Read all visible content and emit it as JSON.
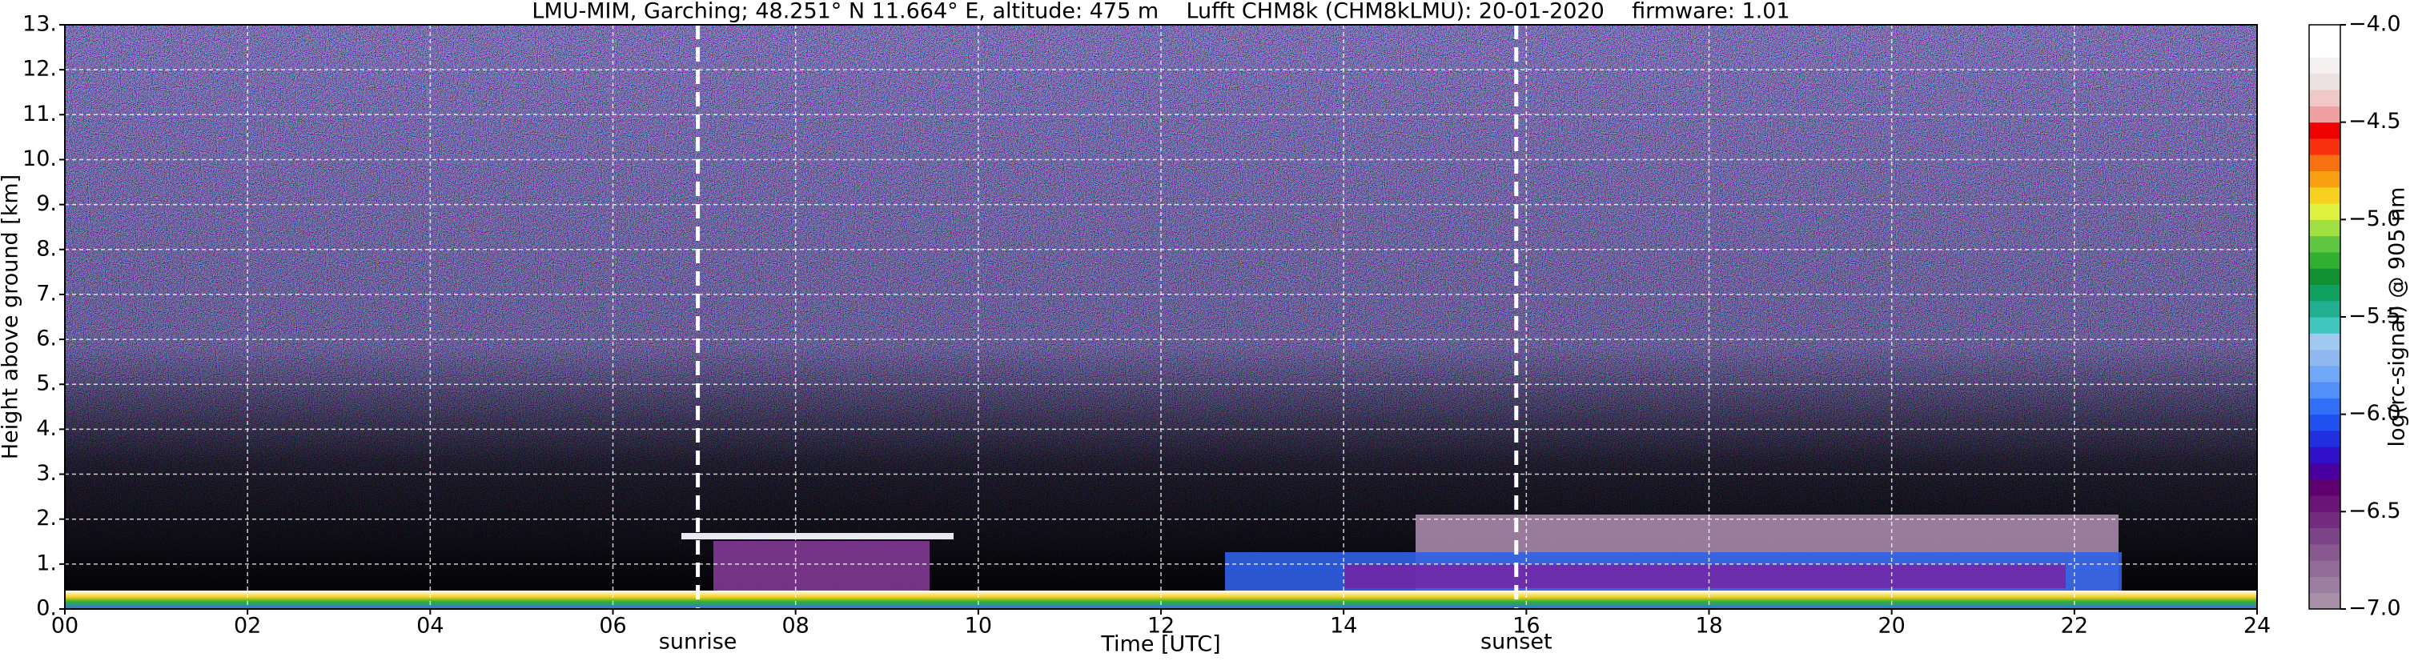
{
  "chart_data": {
    "type": "heatmap",
    "title": "LMU-MIM, Garching; 48.251° N 11.664° E, altitude: 475 m    Lufft CHM8k (CHM8kLMU): 20-01-2020    firmware: 1.01",
    "xlabel": "Time [UTC]",
    "ylabel": "Height above ground [km]",
    "xlim": [
      0,
      24
    ],
    "xticks": [
      {
        "value": 0,
        "label": "00"
      },
      {
        "value": 2,
        "label": "02"
      },
      {
        "value": 4,
        "label": "04"
      },
      {
        "value": 6,
        "label": "06"
      },
      {
        "value": 8,
        "label": "08"
      },
      10,
      12,
      14,
      16,
      18,
      20,
      22,
      24
    ],
    "ylim": [
      0,
      13
    ],
    "yticks": [
      {
        "value": 0,
        "label": "0."
      },
      {
        "value": 1,
        "label": "1."
      },
      {
        "value": 2,
        "label": "2."
      },
      {
        "value": 3,
        "label": "3."
      },
      {
        "value": 4,
        "label": "4."
      },
      {
        "value": 5,
        "label": "5."
      },
      {
        "value": 6,
        "label": "6."
      },
      {
        "value": 7,
        "label": "7."
      },
      {
        "value": 8,
        "label": "8."
      },
      {
        "value": 9,
        "label": "9."
      },
      {
        "value": 10,
        "label": "10."
      },
      {
        "value": 11,
        "label": "11."
      },
      {
        "value": 12,
        "label": "12."
      },
      {
        "value": 13,
        "label": "13."
      }
    ],
    "grid": true,
    "colorbar": {
      "label": "log(rc-signal) @ 905 nm",
      "lim": [
        -7,
        -4
      ],
      "ticks": [
        {
          "value": -7,
          "label": "−7.0"
        },
        {
          "value": -6.5,
          "label": "−6.5"
        },
        {
          "value": -6,
          "label": "−6.0"
        },
        {
          "value": -5.5,
          "label": "−5.5"
        },
        {
          "value": -5,
          "label": "−5.0"
        },
        {
          "value": -4.5,
          "label": "−4.5"
        },
        {
          "value": -4,
          "label": "−4.0"
        }
      ],
      "colors": [
        "#a890a8",
        "#9c7fa0",
        "#926c98",
        "#8a5890",
        "#7e4488",
        "#742c80",
        "#6a1478",
        "#600070",
        "#4a00a0",
        "#3010c8",
        "#2030e0",
        "#2050f0",
        "#3070f8",
        "#5090f8",
        "#70a8f8",
        "#90b8f0",
        "#a0c8f0",
        "#40c8c0",
        "#20b090",
        "#10a060",
        "#109030",
        "#30b030",
        "#60c840",
        "#a0e040",
        "#e0f040",
        "#f8d020",
        "#f8a010",
        "#f87010",
        "#f83010",
        "#f00000",
        "#f0a0a0",
        "#f0c8c8",
        "#ece0e0",
        "#f4f0f0",
        "#ffffff",
        "#ffffff"
      ]
    },
    "annotations": [
      {
        "text": "sunrise",
        "x": 6.93
      },
      {
        "text": "sunset",
        "x": 15.89
      }
    ]
  }
}
